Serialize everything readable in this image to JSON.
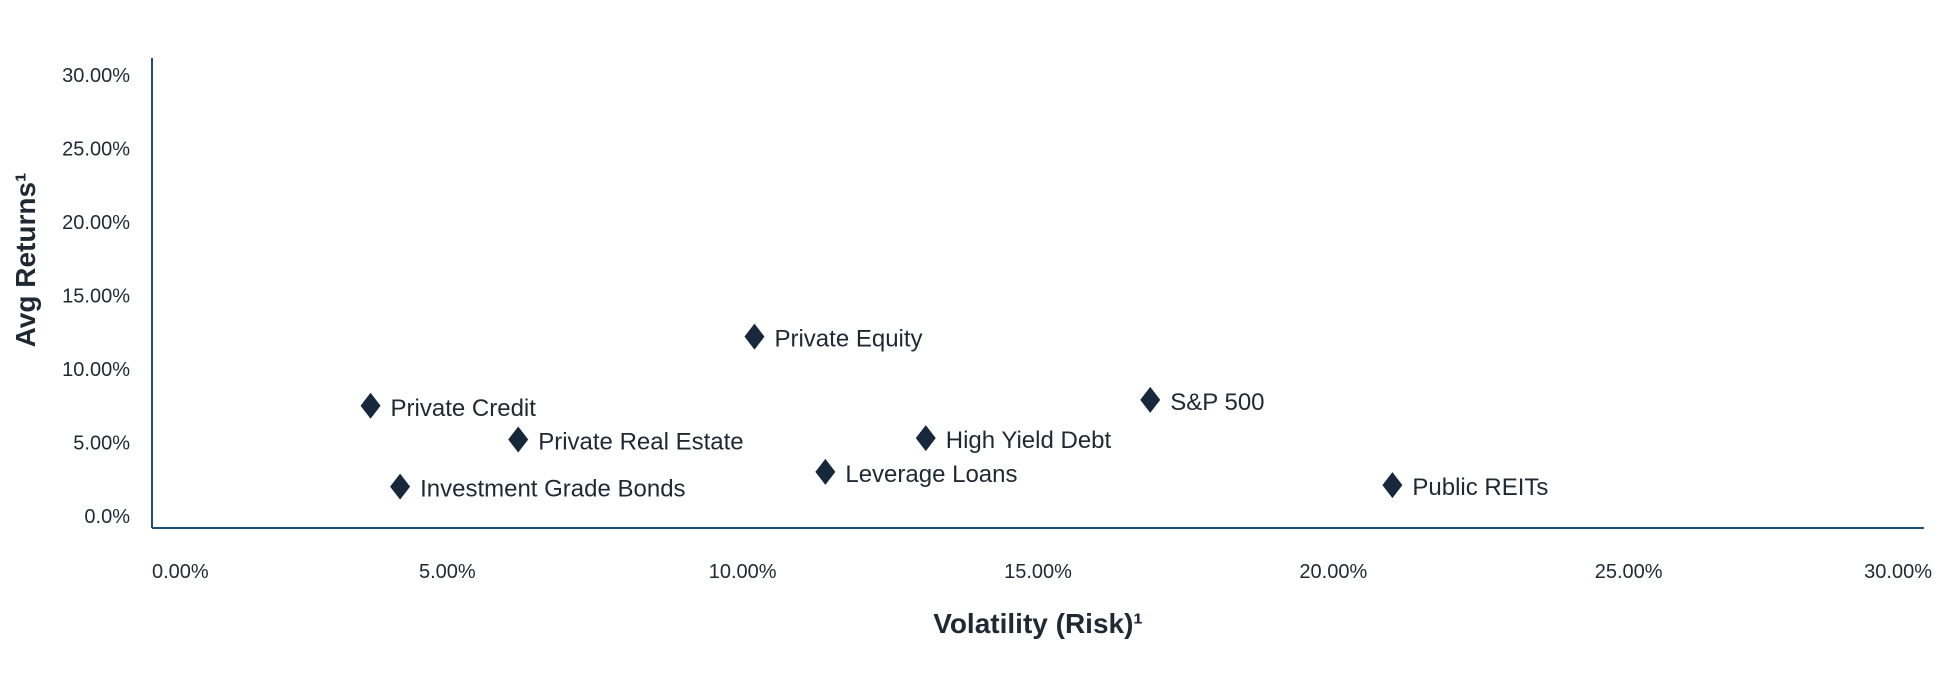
{
  "chart_data": {
    "type": "scatter",
    "xlabel": "Volatility (Risk)¹",
    "ylabel": "Avg Returns¹",
    "xlim": [
      0,
      30
    ],
    "ylim": [
      0,
      30
    ],
    "x_ticks": [
      "0.00%",
      "5.00%",
      "10.00%",
      "15.00%",
      "20.00%",
      "25.00%",
      "30.00%"
    ],
    "y_ticks": [
      "0.0%",
      "5.00%",
      "10.00%",
      "15.00%",
      "20.00%",
      "25.00%",
      "30.00%"
    ],
    "grid": false,
    "marker": "diamond",
    "marker_color": "#17283a",
    "axis_color": "#1f4e79",
    "points": [
      {
        "label": "Private Credit",
        "x": 3.7,
        "y": 7.5
      },
      {
        "label": "Private Real Estate",
        "x": 6.2,
        "y": 5.2
      },
      {
        "label": "Investment Grade Bonds",
        "x": 4.2,
        "y": 2.0
      },
      {
        "label": "Private Equity",
        "x": 10.2,
        "y": 12.2
      },
      {
        "label": "Leverage Loans",
        "x": 11.4,
        "y": 3.0
      },
      {
        "label": "High Yield Debt",
        "x": 13.1,
        "y": 5.3
      },
      {
        "label": "S&P 500",
        "x": 16.9,
        "y": 7.9
      },
      {
        "label": "Public REITs",
        "x": 21.0,
        "y": 2.1
      }
    ]
  }
}
